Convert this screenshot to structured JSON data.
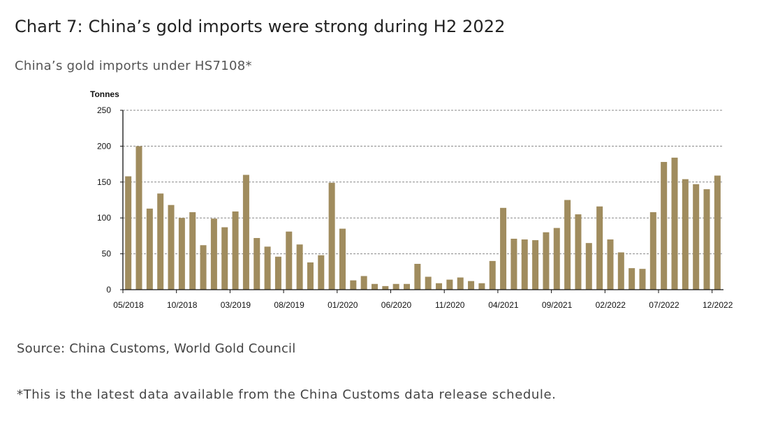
{
  "header": {
    "title": "Chart 7: China’s gold imports were strong during H2 2022",
    "subtitle": "China’s gold imports under HS7108*"
  },
  "footer": {
    "source": "Source: China Customs, World Gold Council",
    "footnote": "*This is the latest data available from the China Customs data release schedule."
  },
  "colors": {
    "bar": "#a08c5e",
    "gridline": "#888888",
    "axis": "#111111"
  },
  "chart_data": {
    "type": "bar",
    "title": "China’s gold imports under HS7108*",
    "xlabel": "",
    "ylabel": "Tonnes",
    "ylim": [
      0,
      250
    ],
    "yticks": [
      0,
      50,
      100,
      150,
      200,
      250
    ],
    "grid": true,
    "legend": "none",
    "xtick_labels": [
      "05/2018",
      "10/2018",
      "03/2019",
      "08/2019",
      "01/2020",
      "06/2020",
      "11/2020",
      "04/2021",
      "09/2021",
      "02/2022",
      "07/2022",
      "12/2022"
    ],
    "categories": [
      "05/2018",
      "06/2018",
      "07/2018",
      "08/2018",
      "09/2018",
      "10/2018",
      "11/2018",
      "12/2018",
      "01/2019",
      "02/2019",
      "03/2019",
      "04/2019",
      "05/2019",
      "06/2019",
      "07/2019",
      "08/2019",
      "09/2019",
      "10/2019",
      "11/2019",
      "12/2019",
      "01/2020",
      "02/2020",
      "03/2020",
      "04/2020",
      "05/2020",
      "06/2020",
      "07/2020",
      "08/2020",
      "09/2020",
      "10/2020",
      "11/2020",
      "12/2020",
      "01/2021",
      "02/2021",
      "03/2021",
      "04/2021",
      "05/2021",
      "06/2021",
      "07/2021",
      "08/2021",
      "09/2021",
      "10/2021",
      "11/2021",
      "12/2021",
      "01/2022",
      "02/2022",
      "03/2022",
      "04/2022",
      "05/2022",
      "06/2022",
      "07/2022",
      "08/2022",
      "09/2022",
      "10/2022",
      "11/2022",
      "12/2022"
    ],
    "series": [
      {
        "name": "Gold imports (tonnes)",
        "values": [
          158,
          200,
          113,
          134,
          118,
          100,
          108,
          62,
          99,
          87,
          109,
          160,
          72,
          60,
          46,
          81,
          63,
          38,
          48,
          149,
          85,
          13,
          19,
          8,
          5,
          8,
          8,
          36,
          18,
          9,
          14,
          17,
          12,
          9,
          40,
          114,
          71,
          70,
          69,
          80,
          86,
          125,
          105,
          65,
          116,
          70,
          52,
          30,
          29,
          108,
          178,
          184,
          154,
          147,
          140,
          159
        ]
      }
    ]
  }
}
